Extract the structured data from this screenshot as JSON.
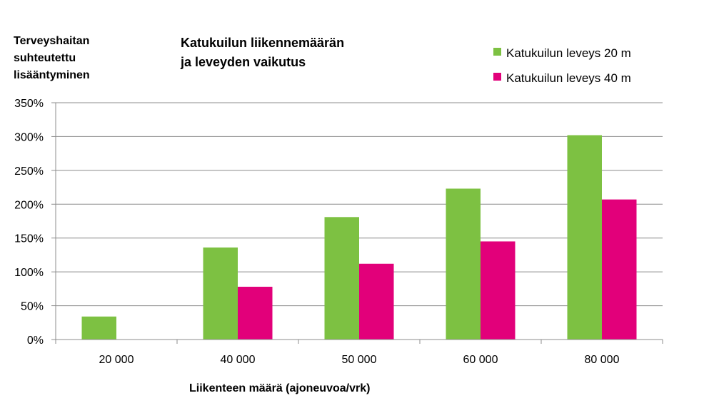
{
  "chart_data": {
    "type": "bar",
    "title_lines": [
      "Katukuilun liikennemäärän",
      "ja leveyden vaikutus"
    ],
    "ylabel_lines": [
      "Terveyshaitan",
      "suhteutettu",
      "lisääntyminen"
    ],
    "xlabel": "Liikenteen määrä (ajoneuvoa/vrk)",
    "categories": [
      "20 000",
      "40 000",
      "50 000",
      "60 000",
      "80 000"
    ],
    "series": [
      {
        "name": "Katukuilun leveys 20 m",
        "color": "#7dc142",
        "values": [
          34,
          136,
          181,
          223,
          302
        ]
      },
      {
        "name": "Katukuilun leveys 40 m",
        "color": "#e2007a",
        "values": [
          null,
          78,
          112,
          145,
          207
        ]
      }
    ],
    "ylim": [
      0,
      350
    ],
    "yticks": [
      0,
      50,
      100,
      150,
      200,
      250,
      300,
      350
    ],
    "ytick_labels": [
      "0%",
      "50%",
      "100%",
      "150%",
      "200%",
      "250%",
      "300%",
      "350%"
    ],
    "grid": true,
    "legend_position": "top-right"
  }
}
